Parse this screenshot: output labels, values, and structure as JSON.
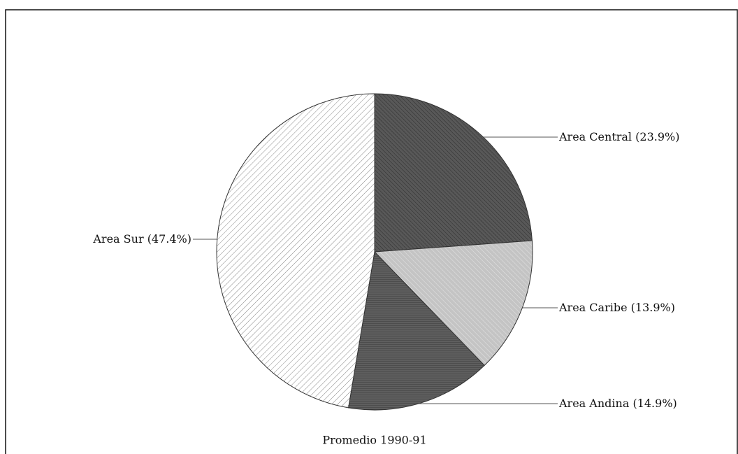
{
  "chart_data": {
    "type": "pie",
    "caption": "Promedio 1990-91",
    "categories": [
      "Area Central",
      "Area Caribe",
      "Area Andina",
      "Area Sur"
    ],
    "values": [
      23.9,
      13.9,
      14.9,
      47.4
    ],
    "value_labels": [
      "(23.9%)",
      "(13.9%)",
      "(14.9%)",
      "(47.4%)"
    ],
    "colors": [
      "#585858",
      "#c4c4c4",
      "#5e5e5e",
      "#ffffff"
    ]
  }
}
